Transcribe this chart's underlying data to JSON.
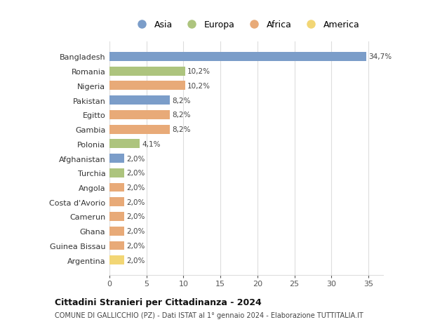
{
  "countries": [
    "Bangladesh",
    "Romania",
    "Nigeria",
    "Pakistan",
    "Egitto",
    "Gambia",
    "Polonia",
    "Afghanistan",
    "Turchia",
    "Angola",
    "Costa d'Avorio",
    "Camerun",
    "Ghana",
    "Guinea Bissau",
    "Argentina"
  ],
  "values": [
    34.7,
    10.2,
    10.2,
    8.2,
    8.2,
    8.2,
    4.1,
    2.0,
    2.0,
    2.0,
    2.0,
    2.0,
    2.0,
    2.0,
    2.0
  ],
  "labels": [
    "34,7%",
    "10,2%",
    "10,2%",
    "8,2%",
    "8,2%",
    "8,2%",
    "4,1%",
    "2,0%",
    "2,0%",
    "2,0%",
    "2,0%",
    "2,0%",
    "2,0%",
    "2,0%",
    "2,0%"
  ],
  "continents": [
    "Asia",
    "Europa",
    "Africa",
    "Asia",
    "Africa",
    "Africa",
    "Europa",
    "Asia",
    "Europa",
    "Africa",
    "Africa",
    "Africa",
    "Africa",
    "Africa",
    "America"
  ],
  "colors": {
    "Asia": "#7b9dc9",
    "Europa": "#adc47e",
    "Africa": "#e8aa78",
    "America": "#f2d675"
  },
  "legend_order": [
    "Asia",
    "Europa",
    "Africa",
    "America"
  ],
  "title": "Cittadini Stranieri per Cittadinanza - 2024",
  "subtitle": "COMUNE DI GALLICCHIO (PZ) - Dati ISTAT al 1° gennaio 2024 - Elaborazione TUTTITALIA.IT",
  "xlim": [
    0,
    37
  ],
  "xticks": [
    0,
    5,
    10,
    15,
    20,
    25,
    30,
    35
  ],
  "background_color": "#ffffff",
  "grid_color": "#dddddd",
  "bar_height": 0.62
}
